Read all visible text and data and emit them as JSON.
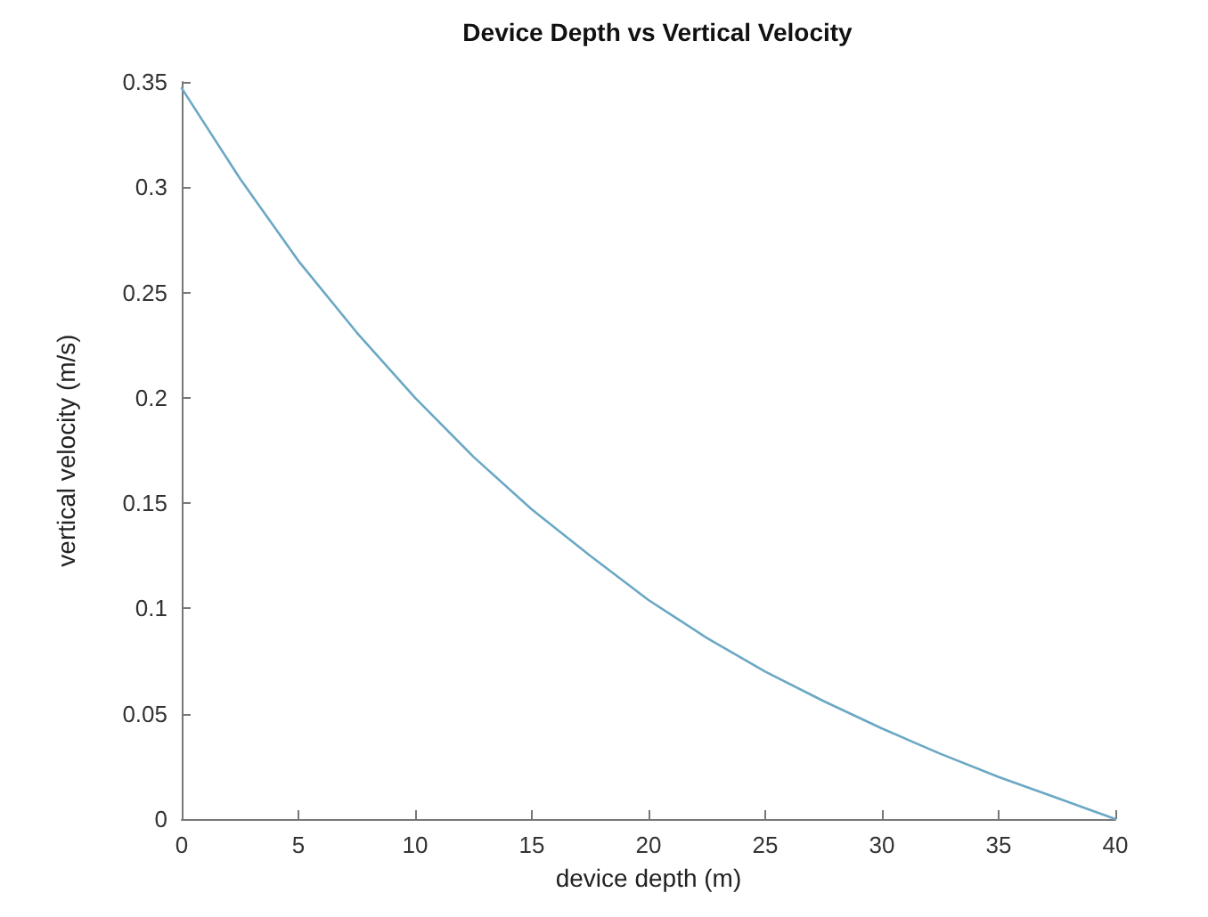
{
  "chart_data": {
    "type": "line",
    "title": "Device Depth vs Vertical Velocity",
    "xlabel": "device depth (m)",
    "ylabel": "vertical velocity (m/s)",
    "series": [
      {
        "color": "#6aa8c4",
        "x": [
          0,
          2.5,
          5,
          7.5,
          10,
          12.5,
          15,
          17.5,
          20,
          22.5,
          25,
          27.5,
          30,
          32.5,
          35,
          37.5,
          40
        ],
        "values": [
          0.347,
          0.304,
          0.265,
          0.231,
          0.2,
          0.172,
          0.147,
          0.125,
          0.104,
          0.086,
          0.07,
          0.056,
          0.043,
          0.031,
          0.02,
          0.01,
          0
        ]
      }
    ],
    "xlim": [
      0,
      40
    ],
    "xticks": [
      0,
      5,
      10,
      15,
      20,
      25,
      30,
      35,
      40
    ],
    "ylim": [
      0,
      0.35
    ],
    "yticks": [
      0,
      0.05,
      0.1,
      0.15,
      0.2,
      0.25,
      0.3,
      0.35
    ],
    "grid": false,
    "marker": "none",
    "line_style": "solid"
  }
}
